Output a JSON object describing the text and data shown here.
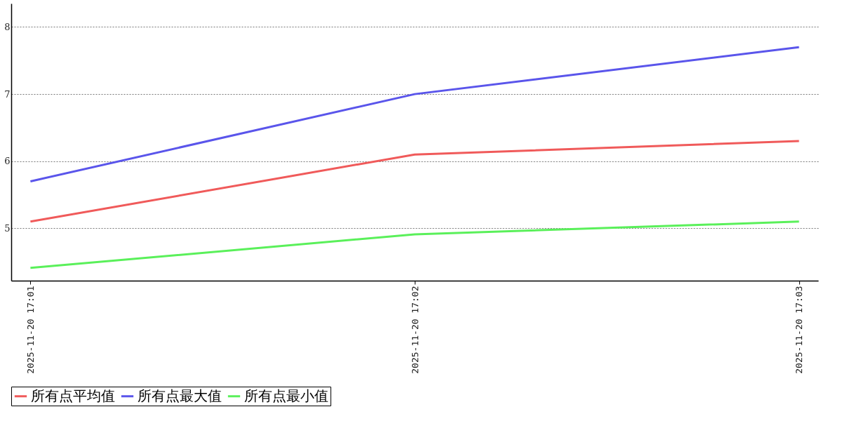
{
  "chart_data": {
    "type": "line",
    "categories": [
      "2025-11-20 17:01",
      "2025-11-20 17:02",
      "2025-11-20 17:03"
    ],
    "series": [
      {
        "name": "所有点平均值",
        "color": "#f05a5a",
        "values": [
          5.1,
          6.1,
          6.3
        ]
      },
      {
        "name": "所有点最大值",
        "color": "#5a55eb",
        "values": [
          5.7,
          7.0,
          7.7
        ]
      },
      {
        "name": "所有点最小值",
        "color": "#5af05a",
        "values": [
          4.41,
          4.91,
          5.1
        ]
      }
    ],
    "ylim": [
      4.22,
      8.35
    ],
    "yticks": [
      5,
      6,
      7,
      8
    ],
    "grid": "y",
    "legend": "bottom",
    "marker": "none",
    "line_style": "solid"
  }
}
